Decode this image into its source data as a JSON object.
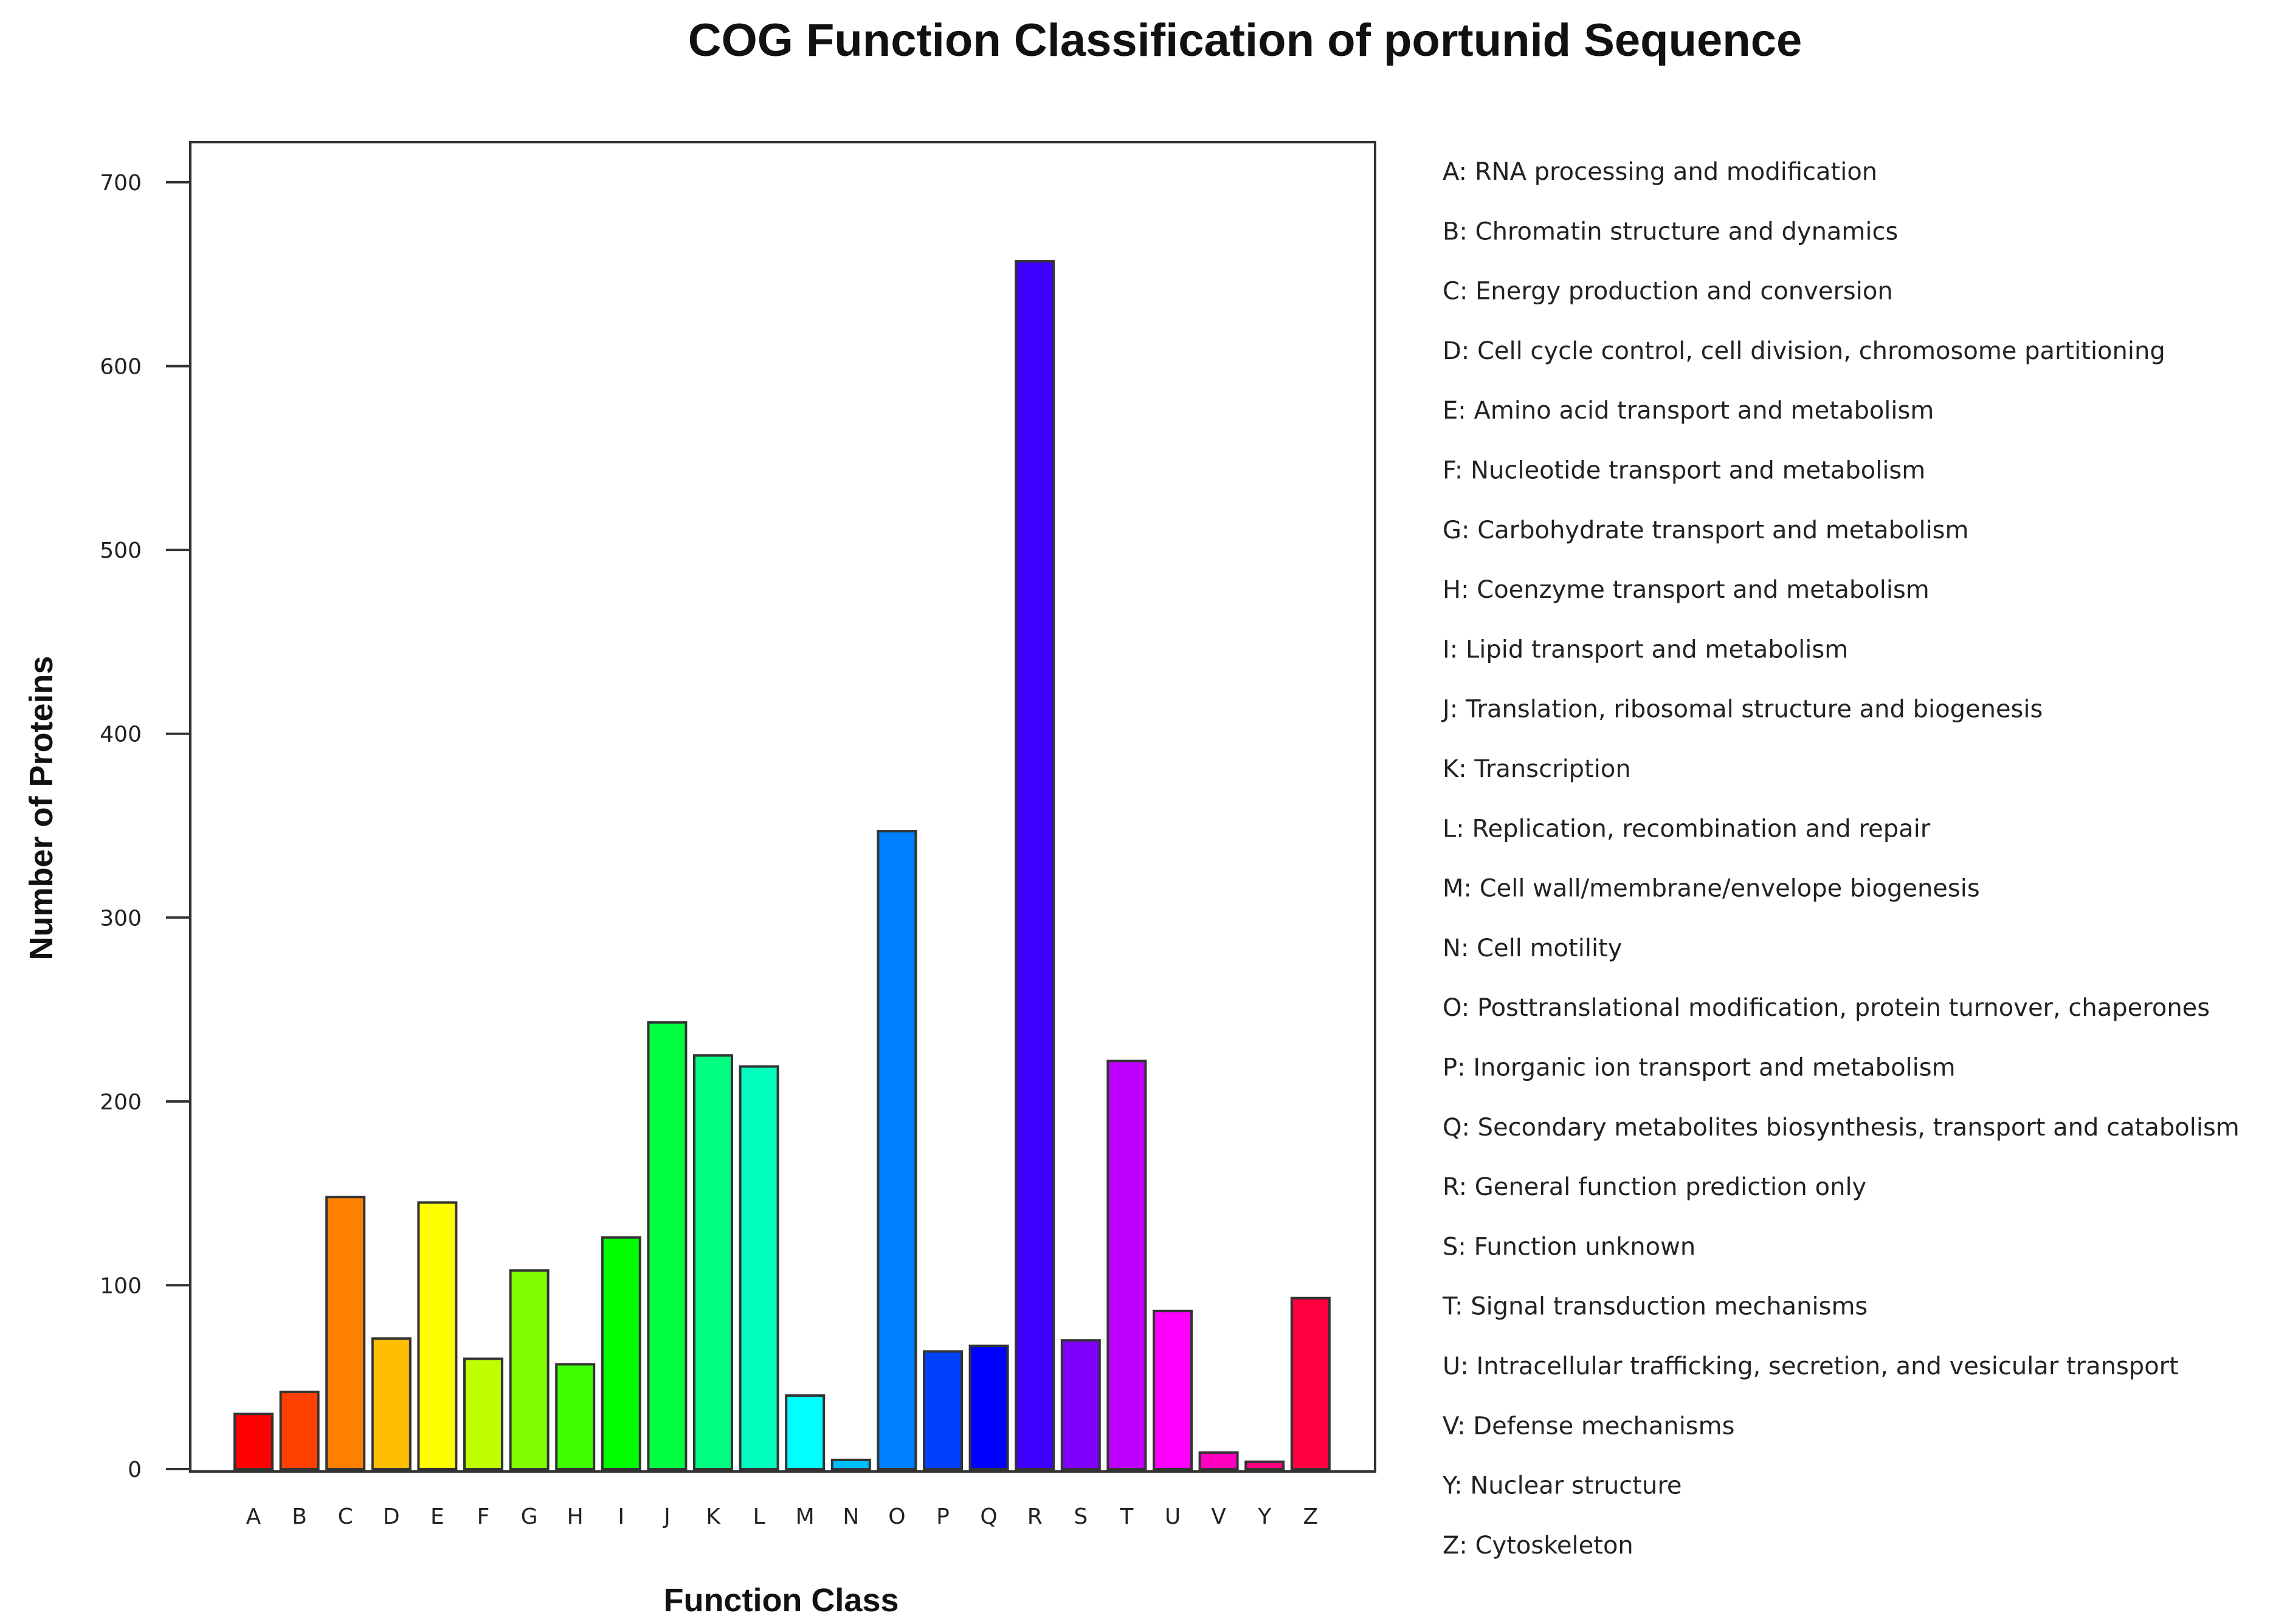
{
  "chart_data": {
    "type": "bar",
    "title": "COG Function Classification of portunid Sequence",
    "xlabel": "Function Class",
    "ylabel": "Number of Proteins",
    "ylim": [
      0,
      720
    ],
    "yticks": [
      0,
      100,
      200,
      300,
      400,
      500,
      600,
      700
    ],
    "grid": false,
    "legend_position": "right",
    "categories": [
      "A",
      "B",
      "C",
      "D",
      "E",
      "F",
      "G",
      "H",
      "I",
      "J",
      "K",
      "L",
      "M",
      "N",
      "O",
      "P",
      "Q",
      "R",
      "S",
      "T",
      "U",
      "V",
      "Y",
      "Z"
    ],
    "values": [
      30,
      42,
      148,
      71,
      145,
      60,
      108,
      57,
      126,
      243,
      225,
      219,
      40,
      5,
      347,
      64,
      67,
      657,
      70,
      222,
      86,
      9,
      4,
      93
    ],
    "colors": [
      "#ff0000",
      "#ff4000",
      "#ff8000",
      "#ffbf00",
      "#ffff00",
      "#bfff00",
      "#80ff00",
      "#40ff00",
      "#00ff00",
      "#00ff40",
      "#00ff80",
      "#00ffbf",
      "#00ffff",
      "#00bfff",
      "#0080ff",
      "#0040ff",
      "#0000ff",
      "#4000ff",
      "#8000ff",
      "#bf00ff",
      "#ff00ff",
      "#ff00bf",
      "#ff0080",
      "#ff0040"
    ],
    "legend": [
      "A: RNA processing and modification",
      "B: Chromatin structure and dynamics",
      "C: Energy production and conversion",
      "D: Cell cycle control, cell division, chromosome partitioning",
      "E: Amino acid transport and metabolism",
      "F: Nucleotide transport and metabolism",
      "G: Carbohydrate transport and metabolism",
      "H: Coenzyme transport and metabolism",
      "I: Lipid transport and metabolism",
      "J: Translation, ribosomal structure and biogenesis",
      "K: Transcription",
      "L: Replication, recombination and repair",
      "M: Cell wall/membrane/envelope biogenesis",
      "N: Cell motility",
      "O: Posttranslational modification, protein turnover, chaperones",
      "P: Inorganic ion transport and metabolism",
      "Q: Secondary metabolites biosynthesis, transport and catabolism",
      "R: General function prediction only",
      "S: Function unknown",
      "T: Signal transduction mechanisms",
      "U: Intracellular trafficking, secretion, and vesicular transport",
      "V: Defense mechanisms",
      "Y: Nuclear structure",
      "Z: Cytoskeleton"
    ]
  }
}
